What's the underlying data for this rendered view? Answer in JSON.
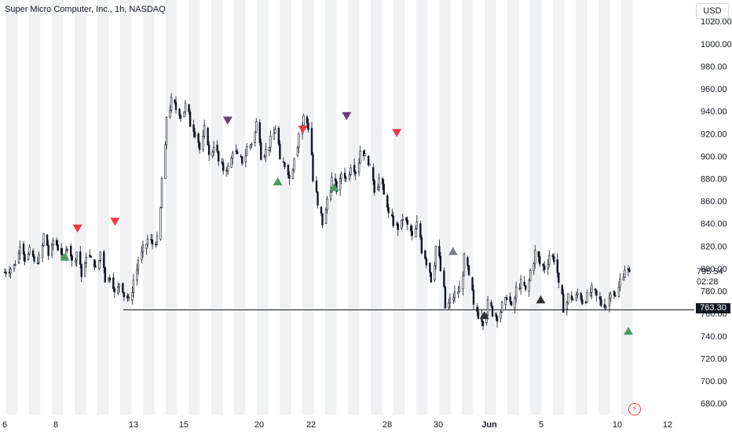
{
  "chart_data": {
    "type": "candlestick",
    "title": "Super Micro Computer, Inc., 1h, NASDAQ",
    "currency": "USD",
    "y_axis": {
      "ticks": [
        1020,
        1000,
        980,
        960,
        940,
        920,
        900,
        880,
        860,
        840,
        820,
        800,
        780,
        760,
        740,
        720,
        700,
        680
      ],
      "range": [
        670,
        1025
      ],
      "position": "right"
    },
    "x_axis": {
      "ticks": [
        "6",
        "8",
        "13",
        "15",
        "20",
        "22",
        "28",
        "30",
        "Jun",
        "5",
        "10",
        "12"
      ]
    },
    "last_price": "795.54",
    "countdown": "02:28",
    "horizontal_level": {
      "value": 763.3,
      "label": "763.30"
    },
    "price_path": [
      [
        797,
        1
      ],
      [
        800,
        3
      ],
      [
        805,
        5
      ],
      [
        822,
        7
      ],
      [
        808,
        9
      ],
      [
        816,
        11
      ],
      [
        805,
        13
      ],
      [
        810,
        15
      ],
      [
        830,
        17
      ],
      [
        812,
        19
      ],
      [
        825,
        21
      ],
      [
        818,
        23
      ],
      [
        810,
        25
      ],
      [
        820,
        27
      ],
      [
        806,
        29
      ],
      [
        815,
        31
      ],
      [
        793,
        33
      ],
      [
        812,
        35
      ],
      [
        808,
        37
      ],
      [
        800,
        39
      ],
      [
        815,
        41
      ],
      [
        790,
        43
      ],
      [
        792,
        45
      ],
      [
        778,
        47
      ],
      [
        787,
        49
      ],
      [
        776,
        51
      ],
      [
        772,
        53
      ],
      [
        790,
        55
      ],
      [
        808,
        57
      ],
      [
        818,
        59
      ],
      [
        826,
        61
      ],
      [
        822,
        63
      ],
      [
        826,
        65
      ],
      [
        880,
        67
      ],
      [
        935,
        69
      ],
      [
        950,
        71
      ],
      [
        942,
        73
      ],
      [
        935,
        75
      ],
      [
        946,
        77
      ],
      [
        928,
        79
      ],
      [
        920,
        81
      ],
      [
        906,
        83
      ],
      [
        925,
        85
      ],
      [
        900,
        87
      ],
      [
        910,
        89
      ],
      [
        895,
        91
      ],
      [
        888,
        93
      ],
      [
        890,
        95
      ],
      [
        905,
        97
      ],
      [
        900,
        99
      ],
      [
        895,
        101
      ],
      [
        908,
        103
      ],
      [
        912,
        105
      ],
      [
        930,
        107
      ],
      [
        900,
        109
      ],
      [
        905,
        111
      ],
      [
        915,
        113
      ],
      [
        925,
        115
      ],
      [
        895,
        117
      ],
      [
        892,
        119
      ],
      [
        880,
        121
      ],
      [
        900,
        123
      ],
      [
        920,
        125
      ],
      [
        935,
        127
      ],
      [
        925,
        129
      ],
      [
        878,
        131
      ],
      [
        855,
        133
      ],
      [
        840,
        135
      ],
      [
        862,
        137
      ],
      [
        880,
        139
      ],
      [
        870,
        141
      ],
      [
        885,
        143
      ],
      [
        880,
        145
      ],
      [
        892,
        147
      ],
      [
        886,
        149
      ],
      [
        905,
        151
      ],
      [
        900,
        153
      ],
      [
        890,
        155
      ],
      [
        870,
        157
      ],
      [
        880,
        159
      ],
      [
        865,
        161
      ],
      [
        848,
        163
      ],
      [
        840,
        165
      ],
      [
        836,
        167
      ],
      [
        845,
        169
      ],
      [
        838,
        171
      ],
      [
        828,
        173
      ],
      [
        840,
        175
      ],
      [
        816,
        177
      ],
      [
        805,
        179
      ],
      [
        790,
        181
      ],
      [
        820,
        183
      ],
      [
        798,
        185
      ],
      [
        765,
        187
      ],
      [
        772,
        189
      ],
      [
        778,
        191
      ],
      [
        782,
        193
      ],
      [
        810,
        195
      ],
      [
        792,
        197
      ],
      [
        766,
        199
      ],
      [
        758,
        201
      ],
      [
        752,
        203
      ],
      [
        770,
        205
      ],
      [
        760,
        207
      ],
      [
        756,
        209
      ],
      [
        768,
        211
      ],
      [
        775,
        213
      ],
      [
        765,
        215
      ],
      [
        782,
        217
      ],
      [
        788,
        219
      ],
      [
        780,
        221
      ],
      [
        798,
        223
      ],
      [
        815,
        225
      ],
      [
        804,
        227
      ],
      [
        800,
        229
      ],
      [
        812,
        231
      ],
      [
        808,
        233
      ],
      [
        785,
        235
      ],
      [
        764,
        237
      ],
      [
        776,
        239
      ],
      [
        772,
        241
      ],
      [
        778,
        243
      ],
      [
        770,
        245
      ],
      [
        776,
        247
      ],
      [
        782,
        249
      ],
      [
        775,
        251
      ],
      [
        768,
        253
      ],
      [
        767,
        255
      ],
      [
        780,
        257
      ],
      [
        775,
        259
      ],
      [
        790,
        261
      ],
      [
        800,
        263
      ],
      [
        795,
        265
      ]
    ],
    "signals": [
      {
        "type": "buy",
        "color": "#4a9c63",
        "pos": [
          10,
          810
        ]
      },
      {
        "type": "sell",
        "color": "#f23645",
        "pos": [
          12,
          835
        ]
      },
      {
        "type": "sell",
        "color": "#f23645",
        "pos": [
          18,
          841
        ]
      },
      {
        "type": "sell",
        "color": "#6c3a7a",
        "pos": [
          36,
          931
        ]
      },
      {
        "type": "buy",
        "color": "#4a9c63",
        "pos": [
          44,
          877
        ]
      },
      {
        "type": "sell",
        "color": "#f23645",
        "pos": [
          48,
          923
        ]
      },
      {
        "type": "buy",
        "color": "#4a9c63",
        "pos": [
          53,
          872
        ]
      },
      {
        "type": "sell",
        "color": "#6c3a7a",
        "pos": [
          55,
          935
        ]
      },
      {
        "type": "sell",
        "color": "#f23645",
        "pos": [
          63,
          920
        ]
      },
      {
        "type": "buy",
        "color": "#7b7f8a",
        "pos": [
          72,
          815
        ]
      },
      {
        "type": "buy",
        "color": "#333333",
        "pos": [
          77,
          758
        ]
      },
      {
        "type": "buy",
        "color": "#333333",
        "pos": [
          86,
          772
        ]
      },
      {
        "type": "buy",
        "color": "#4a9c63",
        "pos": [
          100,
          744
        ]
      }
    ]
  }
}
